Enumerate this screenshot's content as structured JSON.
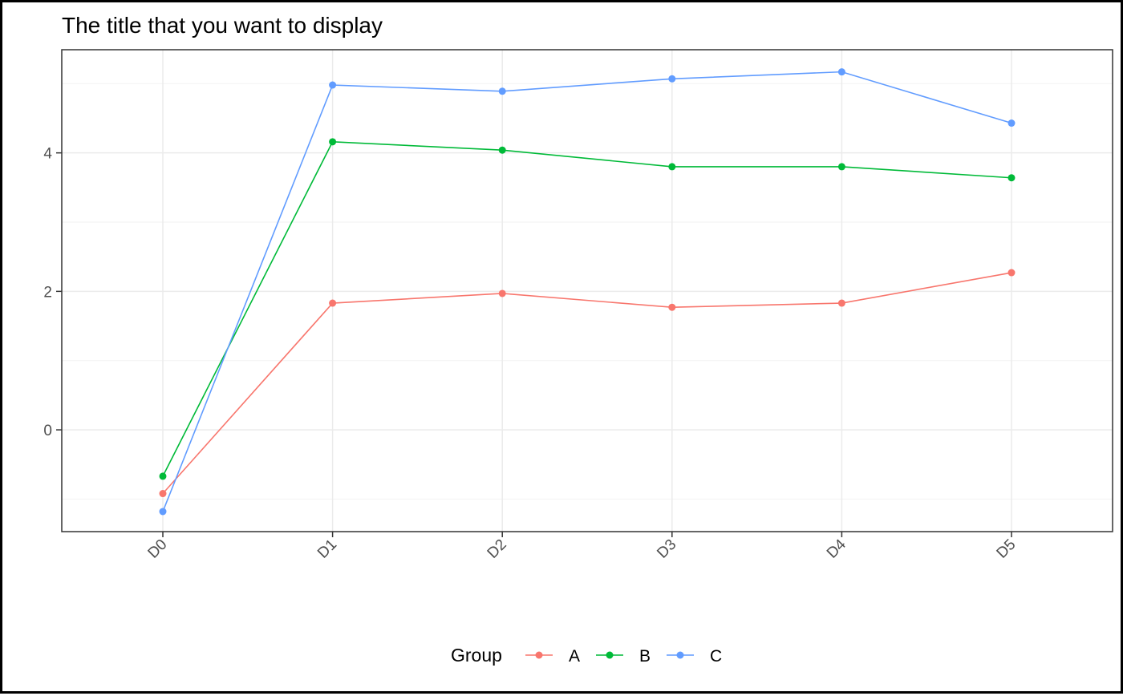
{
  "chart_data": {
    "type": "line",
    "title": "The title that you want to display",
    "xlabel": "",
    "ylabel": "",
    "categories": [
      "D0",
      "D1",
      "D2",
      "D3",
      "D4",
      "D5"
    ],
    "y_ticks": [
      0,
      2,
      4
    ],
    "ylim": [
      -1.47,
      5.49
    ],
    "grid": true,
    "legend": {
      "title": "Group",
      "position": "bottom"
    },
    "series": [
      {
        "name": "A",
        "color": "#F8766D",
        "values": [
          -0.92,
          1.83,
          1.97,
          1.77,
          1.83,
          2.27
        ]
      },
      {
        "name": "B",
        "color": "#00BA38",
        "values": [
          -0.67,
          4.16,
          4.04,
          3.8,
          3.8,
          3.64
        ]
      },
      {
        "name": "C",
        "color": "#619CFF",
        "values": [
          -1.18,
          4.98,
          4.89,
          5.07,
          5.17,
          4.43
        ]
      }
    ]
  }
}
